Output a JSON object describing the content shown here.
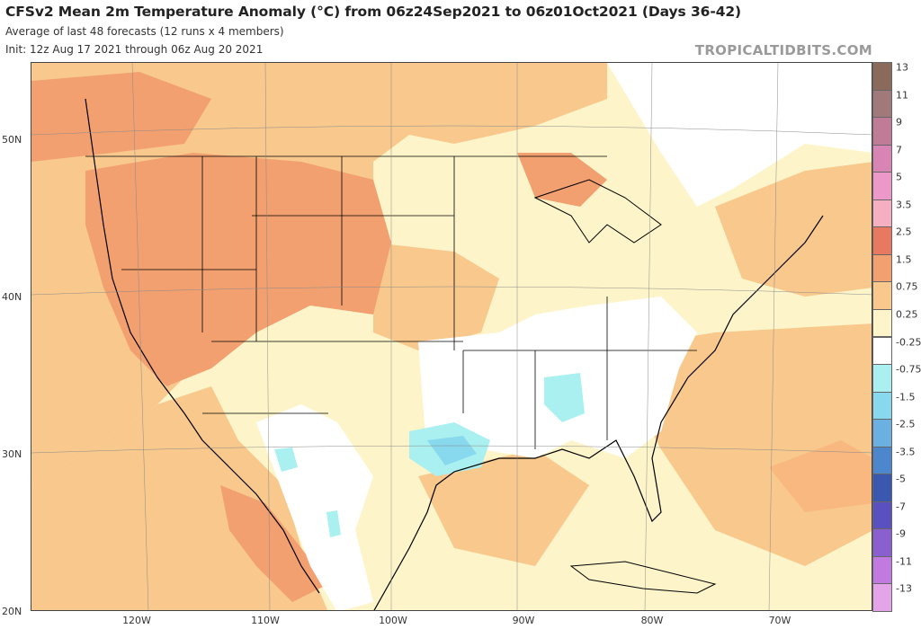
{
  "header": {
    "title": "CFSv2 Mean 2m Temperature Anomaly (°C) from 06z24Sep2021 to 06z01Oct2021 (Days 36-42)",
    "subtitle": "Average of last 48 forecasts (12 runs x 4 members)",
    "init": "Init: 12z Aug 17 2021 through 06z Aug 20 2021",
    "brand": "TROPICALTIDBITS.COM"
  },
  "map": {
    "lat_labels": [
      "50N",
      "40N",
      "30N",
      "20N"
    ],
    "lon_labels": [
      "120W",
      "110W",
      "100W",
      "90W",
      "80W",
      "70W"
    ]
  },
  "colorbar": {
    "labels": [
      "13",
      "11",
      "9",
      "7",
      "5",
      "3.5",
      "2.5",
      "1.5",
      "0.75",
      "0.25",
      "-0.25",
      "-0.75",
      "-1.5",
      "-2.5",
      "-3.5",
      "-5",
      "-7",
      "-9",
      "-11",
      "-13"
    ],
    "colors": [
      "#8a6a5a",
      "#a07a7a",
      "#c07c96",
      "#d884b4",
      "#ec98c8",
      "#f4b0c0",
      "#e87860",
      "#f2a070",
      "#f8c88c",
      "#fdf5c9",
      "#ffffff",
      "#aaf0f0",
      "#88d8ee",
      "#6ab0e0",
      "#4c86cc",
      "#3a58b0",
      "#5a50c0",
      "#8a60d0",
      "#c07ae0",
      "#e4a4e8"
    ]
  },
  "colors": {
    "warm_strong": "#f2a070",
    "warm_mid": "#f8c88c",
    "warm_light": "#fdf5c9",
    "neutral": "#ffffff",
    "cool_light": "#aaf0f0",
    "cool_mid": "#88d8ee"
  }
}
